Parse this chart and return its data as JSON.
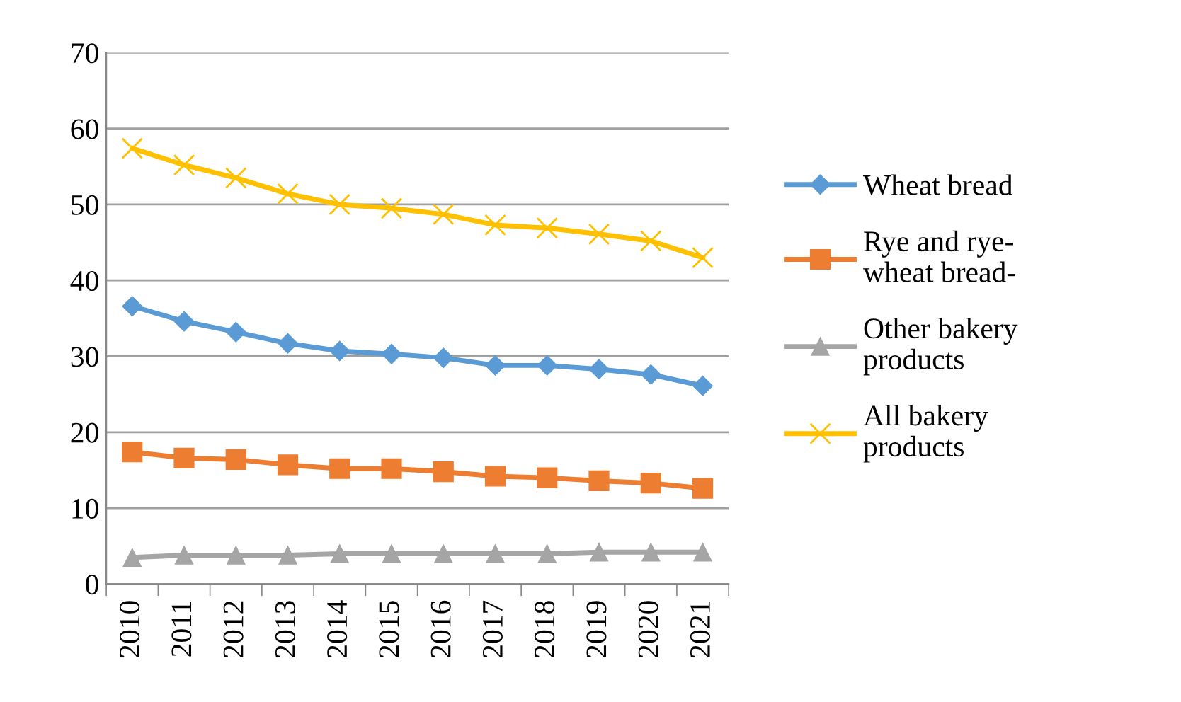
{
  "chart_data": {
    "type": "line",
    "categories": [
      "2010",
      "2011",
      "2012",
      "2013",
      "2014",
      "2015",
      "2016",
      "2017",
      "2018",
      "2019",
      "2020",
      "2021"
    ],
    "series": [
      {
        "name": "Wheat bread",
        "color": "#5b9bd5",
        "marker": "diamond",
        "values": [
          36.6,
          34.6,
          33.2,
          31.7,
          30.7,
          30.3,
          29.8,
          28.8,
          28.8,
          28.3,
          27.6,
          26.1
        ]
      },
      {
        "name": "Rye and rye-\nwheat bread-",
        "color": "#ed7d31",
        "marker": "square",
        "values": [
          17.4,
          16.6,
          16.4,
          15.7,
          15.2,
          15.2,
          14.8,
          14.2,
          14.0,
          13.6,
          13.3,
          12.6
        ]
      },
      {
        "name": "Other bakery\nproducts",
        "color": "#a5a5a5",
        "marker": "triangle",
        "values": [
          3.5,
          3.8,
          3.8,
          3.8,
          4.0,
          4.0,
          4.0,
          4.0,
          4.0,
          4.2,
          4.2,
          4.2
        ]
      },
      {
        "name": "All bakery\nproducts",
        "color": "#ffc000",
        "marker": "cross",
        "values": [
          57.4,
          55.2,
          53.5,
          51.4,
          50.0,
          49.5,
          48.7,
          47.3,
          46.9,
          46.1,
          45.2,
          43.0
        ]
      }
    ],
    "ylim": [
      0,
      70
    ],
    "yticks": [
      0,
      10,
      20,
      30,
      40,
      50,
      60,
      70
    ],
    "grid": "y",
    "legend": "right"
  }
}
